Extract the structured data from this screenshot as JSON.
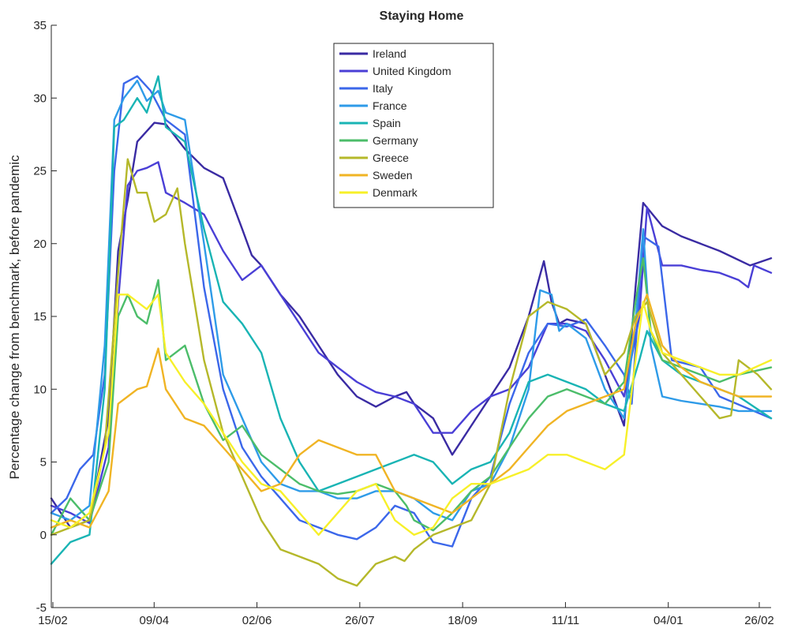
{
  "chart_data": {
    "type": "line",
    "title": "Staying Home",
    "xlabel": "",
    "ylabel": "Percentage change from benchmark, before pandemic",
    "x_ticks": [
      "15/02",
      "09/04",
      "02/06",
      "26/07",
      "18/09",
      "11/11",
      "04/01",
      "26/02"
    ],
    "y_ticks": [
      "-5",
      "0",
      "5",
      "10",
      "15",
      "20",
      "25",
      "30",
      "35"
    ],
    "ylim": [
      -5,
      35
    ],
    "grid": false,
    "legend_position": "top-center",
    "series": [
      {
        "name": "Ireland",
        "color": "#3a2ba3",
        "x": [
          0,
          10,
          20,
          30,
          35,
          40,
          45,
          54,
          60,
          70,
          80,
          90,
          100,
          105,
          110,
          120,
          130,
          140,
          150,
          160,
          170,
          180,
          186,
          190,
          200,
          210,
          220,
          230,
          240,
          250,
          258,
          262,
          266,
          270,
          280,
          290,
          300,
          306,
          310,
          320,
          330,
          340,
          350,
          366,
          377
        ],
        "y": [
          2.5,
          0.5,
          1.0,
          8.0,
          19.5,
          23.0,
          27.0,
          28.3,
          28.2,
          26.5,
          25.2,
          24.5,
          21.0,
          19.2,
          18.5,
          16.5,
          15.0,
          13.0,
          11.0,
          9.5,
          8.8,
          9.5,
          9.8,
          9.0,
          8.0,
          5.5,
          7.5,
          9.5,
          11.5,
          15.0,
          18.8,
          16.0,
          14.5,
          14.8,
          14.5,
          11.0,
          7.5,
          17.0,
          22.8,
          21.2,
          20.5,
          20.0,
          19.5,
          18.5,
          19.0
        ]
      },
      {
        "name": "United Kingdom",
        "color": "#4a3fd6",
        "x": [
          0,
          10,
          20,
          30,
          35,
          40,
          45,
          50,
          56,
          60,
          70,
          80,
          90,
          100,
          110,
          120,
          130,
          140,
          150,
          160,
          170,
          180,
          190,
          200,
          210,
          220,
          230,
          240,
          250,
          260,
          270,
          280,
          290,
          300,
          308,
          312,
          320,
          330,
          340,
          350,
          360,
          365,
          368,
          377
        ],
        "y": [
          2.0,
          1.5,
          0.8,
          6.0,
          16.0,
          24.0,
          25.0,
          25.2,
          25.6,
          23.5,
          22.8,
          22.0,
          19.5,
          17.5,
          18.5,
          16.5,
          14.5,
          12.5,
          11.5,
          10.5,
          9.8,
          9.5,
          9.0,
          7.0,
          7.0,
          8.5,
          9.5,
          10.0,
          11.5,
          14.5,
          14.5,
          14.0,
          12.0,
          9.5,
          15.0,
          22.5,
          18.5,
          18.5,
          18.2,
          18.0,
          17.5,
          17.0,
          18.5,
          18.0
        ]
      },
      {
        "name": "Italy",
        "color": "#3b67ea",
        "x": [
          0,
          8,
          15,
          22,
          28,
          33,
          38,
          45,
          52,
          60,
          70,
          80,
          90,
          100,
          110,
          120,
          130,
          140,
          150,
          160,
          170,
          180,
          190,
          200,
          210,
          220,
          230,
          240,
          250,
          260,
          270,
          280,
          290,
          300,
          304,
          310,
          318,
          325,
          340,
          350,
          377
        ],
        "y": [
          1.5,
          2.5,
          4.5,
          5.5,
          11.0,
          25.0,
          31.0,
          31.5,
          30.5,
          28.5,
          27.5,
          17.0,
          10.0,
          6.0,
          4.0,
          2.5,
          1.0,
          0.5,
          0.0,
          -0.3,
          0.5,
          2.0,
          1.5,
          -0.5,
          -0.8,
          2.5,
          4.0,
          9.0,
          12.5,
          14.5,
          14.3,
          14.8,
          13.0,
          11.0,
          9.0,
          20.5,
          19.8,
          12.0,
          11.5,
          9.5,
          8.0
        ]
      },
      {
        "name": "France",
        "color": "#2e9be8",
        "x": [
          0,
          10,
          20,
          28,
          33,
          38,
          45,
          50,
          56,
          60,
          70,
          80,
          90,
          100,
          110,
          120,
          130,
          140,
          150,
          160,
          170,
          180,
          190,
          200,
          210,
          220,
          230,
          240,
          250,
          256,
          262,
          266,
          270,
          280,
          290,
          300,
          306,
          310,
          314,
          320,
          330,
          340,
          350,
          360,
          377
        ],
        "y": [
          1.5,
          1.0,
          2.0,
          13.0,
          28.5,
          30.0,
          31.2,
          29.8,
          30.5,
          29.0,
          28.5,
          20.0,
          11.0,
          8.0,
          5.0,
          3.5,
          3.0,
          3.0,
          2.5,
          2.5,
          3.0,
          3.0,
          2.5,
          1.5,
          1.0,
          3.0,
          3.5,
          6.0,
          10.0,
          16.8,
          16.5,
          14.0,
          14.5,
          13.5,
          10.0,
          8.0,
          14.5,
          21.0,
          13.0,
          9.5,
          9.2,
          9.0,
          8.8,
          8.5,
          8.5
        ]
      },
      {
        "name": "Spain",
        "color": "#19b4b4",
        "x": [
          0,
          10,
          20,
          28,
          33,
          38,
          45,
          50,
          56,
          60,
          70,
          80,
          90,
          100,
          110,
          120,
          130,
          140,
          150,
          160,
          170,
          180,
          190,
          200,
          210,
          220,
          230,
          240,
          250,
          260,
          270,
          280,
          290,
          300,
          308,
          312,
          320,
          330,
          340,
          350,
          360,
          377
        ],
        "y": [
          -2.0,
          -0.5,
          0.0,
          10.0,
          28.0,
          28.5,
          30.0,
          29.0,
          31.5,
          28.0,
          27.0,
          21.0,
          16.0,
          14.5,
          12.5,
          8.0,
          5.0,
          3.0,
          3.5,
          4.0,
          4.5,
          5.0,
          5.5,
          5.0,
          3.5,
          4.5,
          5.0,
          7.0,
          10.5,
          11.0,
          10.5,
          10.0,
          9.0,
          8.5,
          12.0,
          14.0,
          12.0,
          11.0,
          10.5,
          10.0,
          9.5,
          8.0
        ]
      },
      {
        "name": "Germany",
        "color": "#4cbd6a",
        "x": [
          0,
          10,
          20,
          30,
          35,
          40,
          45,
          50,
          56,
          60,
          70,
          80,
          90,
          100,
          110,
          120,
          130,
          140,
          150,
          160,
          170,
          180,
          186,
          190,
          200,
          210,
          220,
          230,
          240,
          250,
          260,
          270,
          280,
          290,
          300,
          306,
          310,
          314,
          320,
          330,
          340,
          350,
          360,
          377
        ],
        "y": [
          0.0,
          2.5,
          1.0,
          5.0,
          15.0,
          16.5,
          15.0,
          14.5,
          17.5,
          12.0,
          13.0,
          9.0,
          6.5,
          7.5,
          5.5,
          4.5,
          3.5,
          3.0,
          2.8,
          3.0,
          3.5,
          3.0,
          2.0,
          1.0,
          0.3,
          1.5,
          3.0,
          4.0,
          6.0,
          8.0,
          9.5,
          10.0,
          9.5,
          9.0,
          10.5,
          16.0,
          19.0,
          14.0,
          12.0,
          11.5,
          11.0,
          10.5,
          11.0,
          11.5
        ]
      },
      {
        "name": "Greece",
        "color": "#b5b82a",
        "x": [
          0,
          10,
          20,
          28,
          35,
          40,
          45,
          50,
          54,
          60,
          66,
          70,
          80,
          90,
          100,
          110,
          120,
          130,
          140,
          150,
          160,
          170,
          180,
          185,
          190,
          200,
          210,
          220,
          230,
          240,
          250,
          260,
          270,
          280,
          290,
          300,
          306,
          312,
          320,
          330,
          340,
          350,
          356,
          360,
          370,
          377
        ],
        "y": [
          0.0,
          0.5,
          1.0,
          6.0,
          18.0,
          25.8,
          23.5,
          23.5,
          21.5,
          22.0,
          23.8,
          20.0,
          12.0,
          7.0,
          4.0,
          1.0,
          -1.0,
          -1.5,
          -2.0,
          -3.0,
          -3.5,
          -2.0,
          -1.5,
          -1.8,
          -1.0,
          0.0,
          0.5,
          1.0,
          3.5,
          10.0,
          15.0,
          16.0,
          15.5,
          14.5,
          11.0,
          12.5,
          15.0,
          16.0,
          12.5,
          11.0,
          9.5,
          8.0,
          8.2,
          12.0,
          11.0,
          10.0
        ]
      },
      {
        "name": "Sweden",
        "color": "#f0b424",
        "x": [
          0,
          10,
          20,
          30,
          35,
          40,
          45,
          50,
          56,
          60,
          70,
          80,
          90,
          100,
          110,
          120,
          130,
          140,
          150,
          160,
          170,
          180,
          190,
          200,
          210,
          220,
          230,
          240,
          250,
          260,
          270,
          280,
          290,
          300,
          306,
          312,
          320,
          330,
          340,
          350,
          360,
          377
        ],
        "y": [
          0.5,
          1.0,
          0.5,
          3.0,
          9.0,
          9.5,
          10.0,
          10.2,
          12.8,
          10.0,
          8.0,
          7.5,
          6.0,
          4.5,
          3.0,
          3.5,
          5.5,
          6.5,
          6.0,
          5.5,
          5.5,
          3.0,
          2.5,
          2.0,
          1.5,
          2.5,
          3.5,
          4.5,
          6.0,
          7.5,
          8.5,
          9.0,
          9.5,
          10.0,
          14.5,
          16.5,
          13.0,
          11.5,
          10.5,
          10.0,
          9.5,
          9.5
        ]
      },
      {
        "name": "Denmark",
        "color": "#f7f029",
        "x": [
          0,
          10,
          20,
          30,
          35,
          40,
          45,
          50,
          56,
          60,
          70,
          80,
          90,
          100,
          110,
          120,
          130,
          140,
          150,
          160,
          170,
          180,
          190,
          200,
          210,
          220,
          230,
          240,
          250,
          260,
          270,
          280,
          290,
          300,
          306,
          310,
          314,
          320,
          330,
          340,
          350,
          360,
          377
        ],
        "y": [
          1.0,
          0.5,
          1.5,
          7.0,
          16.5,
          16.5,
          16.0,
          15.5,
          16.5,
          12.5,
          10.5,
          9.0,
          7.0,
          5.0,
          3.5,
          3.0,
          1.5,
          0.0,
          1.5,
          3.0,
          3.5,
          1.0,
          0.0,
          0.5,
          2.5,
          3.5,
          3.5,
          4.0,
          4.5,
          5.5,
          5.5,
          5.0,
          4.5,
          5.5,
          12.0,
          16.0,
          14.0,
          12.5,
          12.0,
          11.5,
          11.0,
          11.0,
          12.0
        ]
      }
    ]
  }
}
